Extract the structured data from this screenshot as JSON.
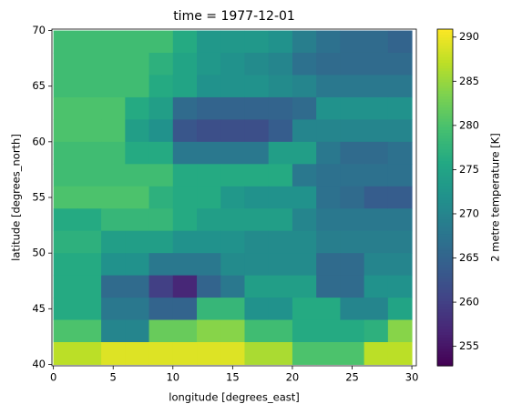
{
  "chart_data": {
    "type": "heatmap",
    "title": "time = 1977-12-01",
    "x_label": "longitude [degrees_east]",
    "y_label": "latitude [degrees_north]",
    "colorbar_label": "2 metre temperature [K]",
    "colormap": "viridis",
    "x": [
      1,
      3,
      5,
      7,
      9,
      11,
      13,
      15,
      17,
      19,
      21,
      23,
      25,
      27,
      29
    ],
    "y": [
      69,
      67,
      65,
      63,
      61,
      59,
      57,
      55,
      53,
      51,
      49,
      47,
      45,
      43,
      41
    ],
    "z": [
      [
        279,
        279,
        279,
        279,
        279,
        276,
        273,
        273,
        273,
        272,
        269,
        267,
        266,
        266,
        265
      ],
      [
        279,
        279,
        279,
        279,
        277,
        275,
        273,
        272,
        271,
        270,
        267,
        266,
        266,
        266,
        266
      ],
      [
        279,
        279,
        279,
        279,
        276,
        275,
        272,
        272,
        272,
        271,
        270,
        268,
        268,
        268,
        268
      ],
      [
        280,
        280,
        280,
        276,
        274,
        266,
        265,
        265,
        265,
        265,
        266,
        272,
        272,
        272,
        272
      ],
      [
        280,
        280,
        280,
        274,
        272,
        263,
        262,
        262,
        262,
        264,
        270,
        270,
        270,
        270,
        270
      ],
      [
        279,
        279,
        279,
        276,
        276,
        268,
        268,
        268,
        268,
        274,
        274,
        268,
        266,
        266,
        267
      ],
      [
        279,
        279,
        279,
        279,
        279,
        276,
        276,
        276,
        276,
        276,
        268,
        267,
        267,
        267,
        267
      ],
      [
        280,
        280,
        280,
        280,
        277,
        276,
        276,
        273,
        272,
        272,
        272,
        267,
        266,
        264,
        264
      ],
      [
        276,
        276,
        278,
        278,
        278,
        276,
        274,
        274,
        274,
        274,
        270,
        268,
        268,
        268,
        268
      ],
      [
        277,
        277,
        274,
        274,
        274,
        272,
        272,
        272,
        271,
        271,
        271,
        269,
        269,
        269,
        269
      ],
      [
        276,
        276,
        272,
        272,
        268,
        268,
        268,
        271,
        271,
        271,
        271,
        266,
        266,
        270,
        270
      ],
      [
        276,
        276,
        266,
        266,
        260,
        257,
        265,
        268,
        274,
        274,
        274,
        266,
        266,
        272,
        272
      ],
      [
        276,
        276,
        268,
        268,
        265,
        265,
        278,
        278,
        272,
        272,
        276,
        276,
        270,
        270,
        275
      ],
      [
        280,
        280,
        270,
        270,
        282,
        282,
        284,
        284,
        279,
        279,
        276,
        276,
        276,
        277,
        284
      ],
      [
        287,
        287,
        289,
        289,
        289,
        289,
        289,
        289,
        286,
        286,
        280,
        280,
        280,
        287,
        287
      ]
    ],
    "xlim": [
      -0.125,
      30.375
    ],
    "ylim": [
      39.875,
      70.125
    ],
    "xticks": [
      0,
      5,
      10,
      15,
      20,
      25,
      30
    ],
    "yticks": [
      40,
      45,
      50,
      55,
      60,
      65,
      70
    ],
    "clim": [
      252.8,
      290.9
    ],
    "cticks": [
      255,
      260,
      265,
      270,
      275,
      280,
      285,
      290
    ]
  }
}
